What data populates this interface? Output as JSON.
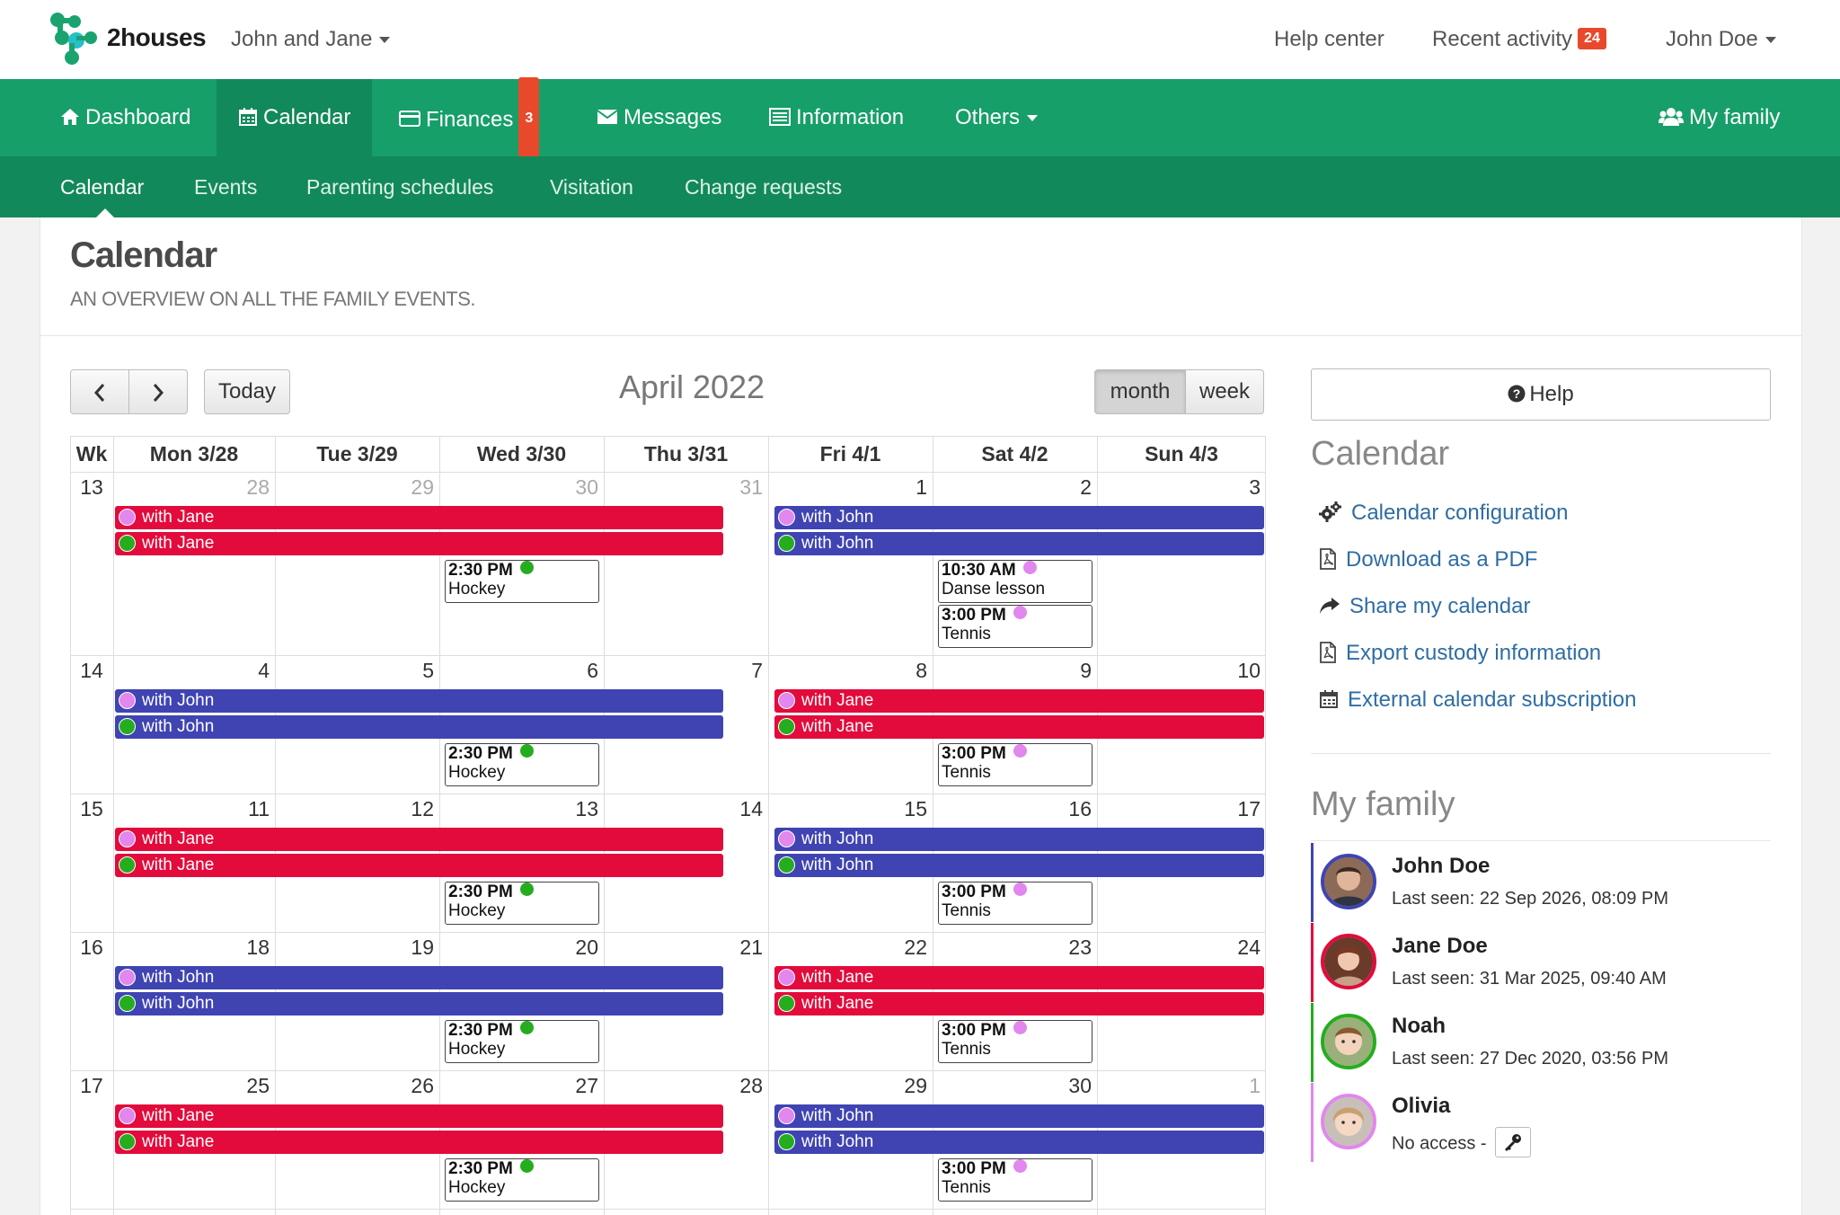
{
  "header": {
    "brand": "2houses",
    "family_selector": "John and Jane",
    "help_center": "Help center",
    "recent_activity": "Recent activity",
    "recent_activity_count": "24",
    "user": "John Doe"
  },
  "nav": {
    "dashboard": "Dashboard",
    "calendar": "Calendar",
    "finances": "Finances",
    "finances_badge": "3",
    "messages": "Messages",
    "information": "Information",
    "others": "Others",
    "my_family": "My family"
  },
  "subnav": {
    "calendar": "Calendar",
    "events": "Events",
    "parenting_schedules": "Parenting schedules",
    "visitation": "Visitation",
    "change_requests": "Change requests"
  },
  "page": {
    "title": "Calendar",
    "subtitle": "AN OVERVIEW ON ALL THE FAMILY EVENTS."
  },
  "toolbar": {
    "prev_icon": "chevron-left-icon",
    "next_icon": "chevron-right-icon",
    "today": "Today",
    "month_title": "April 2022",
    "month": "month",
    "week": "week"
  },
  "calendar": {
    "headers": [
      "Wk",
      "Mon 3/28",
      "Tue 3/29",
      "Wed 3/30",
      "Thu 3/31",
      "Fri 4/1",
      "Sat 4/2",
      "Sun 4/3"
    ],
    "weeks": [
      {
        "wk": "13",
        "days": [
          {
            "d": "28",
            "other": true
          },
          {
            "d": "29",
            "other": true
          },
          {
            "d": "30",
            "other": true
          },
          {
            "d": "31",
            "other": true
          },
          {
            "d": "1"
          },
          {
            "d": "2"
          },
          {
            "d": "3"
          }
        ],
        "first_half": "Jane",
        "second_half": "John",
        "events": [
          {
            "day": 2,
            "row": 0,
            "time": "2:30 PM",
            "name": "Hockey",
            "dot": "green"
          },
          {
            "day": 5,
            "row": 0,
            "time": "10:30 AM",
            "name": "Danse lesson",
            "dot": "pink"
          },
          {
            "day": 5,
            "row": 1,
            "time": "3:00 PM",
            "name": "Tennis",
            "dot": "pink"
          }
        ]
      },
      {
        "wk": "14",
        "days": [
          {
            "d": "4"
          },
          {
            "d": "5"
          },
          {
            "d": "6"
          },
          {
            "d": "7"
          },
          {
            "d": "8"
          },
          {
            "d": "9"
          },
          {
            "d": "10"
          }
        ],
        "first_half": "John",
        "second_half": "Jane",
        "events": [
          {
            "day": 2,
            "row": 0,
            "time": "2:30 PM",
            "name": "Hockey",
            "dot": "green"
          },
          {
            "day": 5,
            "row": 0,
            "time": "3:00 PM",
            "name": "Tennis",
            "dot": "pink"
          }
        ]
      },
      {
        "wk": "15",
        "days": [
          {
            "d": "11"
          },
          {
            "d": "12"
          },
          {
            "d": "13"
          },
          {
            "d": "14"
          },
          {
            "d": "15"
          },
          {
            "d": "16"
          },
          {
            "d": "17"
          }
        ],
        "first_half": "Jane",
        "second_half": "John",
        "events": [
          {
            "day": 2,
            "row": 0,
            "time": "2:30 PM",
            "name": "Hockey",
            "dot": "green"
          },
          {
            "day": 5,
            "row": 0,
            "time": "3:00 PM",
            "name": "Tennis",
            "dot": "pink"
          }
        ]
      },
      {
        "wk": "16",
        "days": [
          {
            "d": "18"
          },
          {
            "d": "19"
          },
          {
            "d": "20"
          },
          {
            "d": "21"
          },
          {
            "d": "22"
          },
          {
            "d": "23"
          },
          {
            "d": "24"
          }
        ],
        "first_half": "John",
        "second_half": "Jane",
        "events": [
          {
            "day": 2,
            "row": 0,
            "time": "2:30 PM",
            "name": "Hockey",
            "dot": "green"
          },
          {
            "day": 5,
            "row": 0,
            "time": "3:00 PM",
            "name": "Tennis",
            "dot": "pink"
          }
        ]
      },
      {
        "wk": "17",
        "days": [
          {
            "d": "25"
          },
          {
            "d": "26"
          },
          {
            "d": "27"
          },
          {
            "d": "28"
          },
          {
            "d": "29"
          },
          {
            "d": "30"
          },
          {
            "d": "1",
            "other": true
          }
        ],
        "first_half": "Jane",
        "second_half": "John",
        "events": [
          {
            "day": 2,
            "row": 0,
            "time": "2:30 PM",
            "name": "Hockey",
            "dot": "green"
          },
          {
            "day": 5,
            "row": 0,
            "time": "3:00 PM",
            "name": "Tennis",
            "dot": "pink"
          }
        ]
      }
    ],
    "bar_label_prefix": "with"
  },
  "sidebar": {
    "help": "Help",
    "calendar_title": "Calendar",
    "links": [
      {
        "label": "Calendar configuration",
        "icon": "gears-icon"
      },
      {
        "label": "Download as a PDF",
        "icon": "pdf-file-icon"
      },
      {
        "label": "Share my calendar",
        "icon": "share-arrow-icon"
      },
      {
        "label": "Export custody information",
        "icon": "pdf-file-icon"
      },
      {
        "label": "External calendar subscription",
        "icon": "calendar-icon"
      }
    ],
    "family_title": "My family",
    "members": [
      {
        "name": "John Doe",
        "status": "Last seen: 22 Sep 2026, 08:09 PM",
        "color": "#3f44b2"
      },
      {
        "name": "Jane Doe",
        "status": "Last seen: 31 Mar 2025, 09:40 AM",
        "color": "#e30b3c"
      },
      {
        "name": "Noah",
        "status": "Last seen: 27 Dec 2020, 03:56 PM",
        "color": "#25ad1f"
      },
      {
        "name": "Olivia",
        "status": "No access -",
        "color": "#e187ee"
      }
    ]
  },
  "colors": {
    "nav_green": "#169f69",
    "subnav_green": "#12895a",
    "jane_red": "#e30b3c",
    "john_blue": "#3f44b2",
    "child_pink": "#e187ee",
    "child_green": "#25ad1f",
    "badge_red": "#e8492b",
    "link_blue": "#2e6da4"
  }
}
